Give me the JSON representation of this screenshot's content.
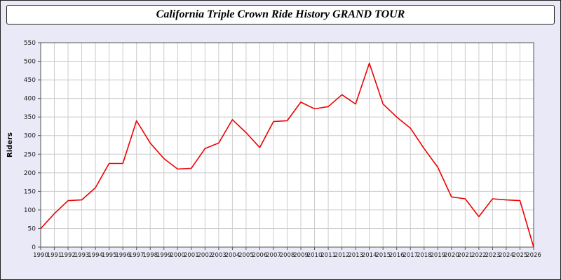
{
  "title": "California Triple Crown Ride History GRAND TOUR",
  "chart_data": {
    "type": "line",
    "title": "California Triple Crown Ride History GRAND TOUR",
    "xlabel": "",
    "ylabel": "Riders",
    "ylim": [
      0,
      550
    ],
    "ytick_step": 50,
    "grid": true,
    "legend_position": "none",
    "x": [
      1990,
      1991,
      1992,
      1993,
      1994,
      1995,
      1996,
      1997,
      1998,
      1999,
      2000,
      2001,
      2002,
      2003,
      2004,
      2005,
      2006,
      2007,
      2008,
      2009,
      2010,
      2011,
      2012,
      2013,
      2014,
      2015,
      2016,
      2017,
      2018,
      2019,
      2020,
      2021,
      2022,
      2023,
      2024,
      2025,
      2026
    ],
    "series": [
      {
        "name": "Riders",
        "color": "#ee0000",
        "values": [
          50,
          90,
          125,
          127,
          160,
          225,
          225,
          340,
          280,
          238,
          210,
          212,
          265,
          280,
          343,
          308,
          268,
          338,
          340,
          390,
          372,
          378,
          410,
          385,
          495,
          385,
          350,
          320,
          265,
          215,
          135,
          130,
          82,
          130,
          127,
          125,
          0
        ]
      }
    ]
  },
  "colors": {
    "page_bg": "#e9e9f7",
    "plot_bg": "#ffffff",
    "grid": "#cccccc",
    "axis": "#555555",
    "tick_text": "#222222",
    "line": "#ee0000"
  }
}
